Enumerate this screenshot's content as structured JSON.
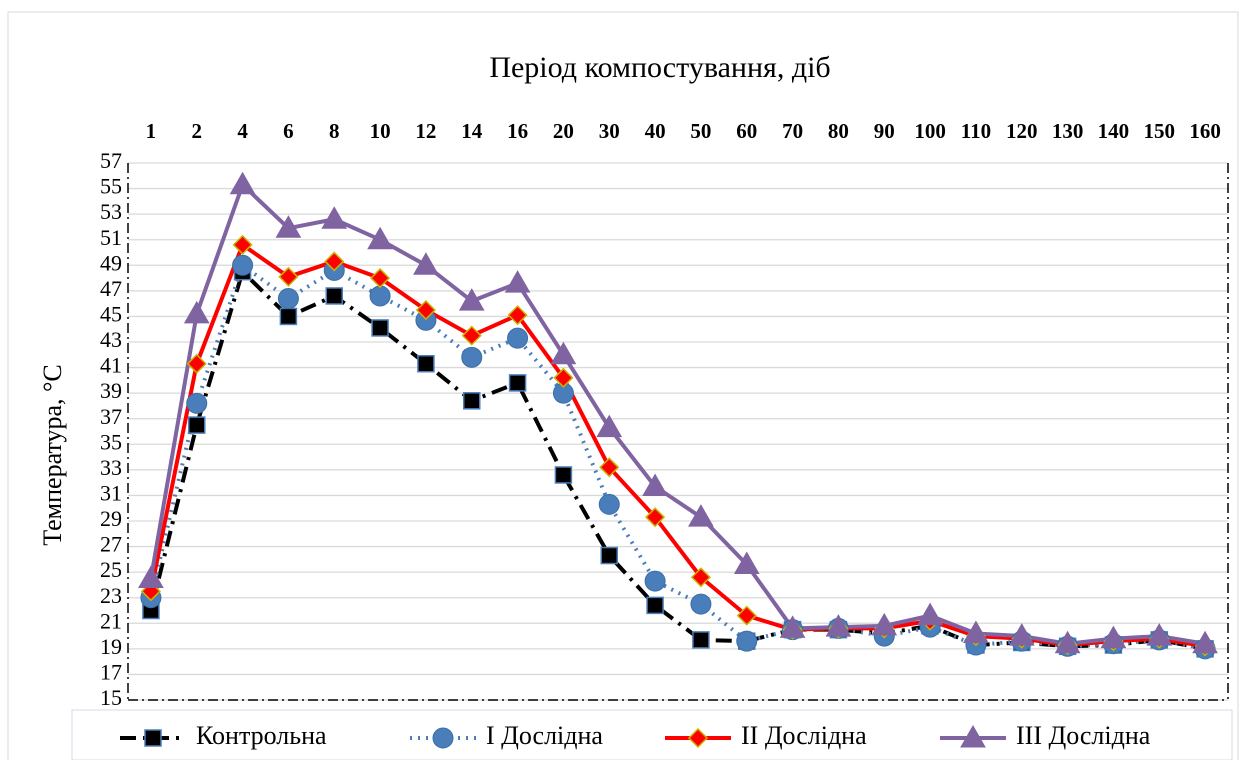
{
  "chart_data": {
    "type": "line",
    "title": "Період компостування, діб",
    "y_label": "Температура, °C",
    "categories": [
      "1",
      "2",
      "4",
      "6",
      "8",
      "10",
      "12",
      "14",
      "16",
      "20",
      "30",
      "40",
      "50",
      "60",
      "70",
      "80",
      "90",
      "100",
      "110",
      "120",
      "130",
      "140",
      "150",
      "160"
    ],
    "ylim": [
      15,
      57
    ],
    "yticks": [
      15,
      17,
      19,
      21,
      23,
      25,
      27,
      29,
      31,
      33,
      35,
      37,
      39,
      41,
      43,
      45,
      47,
      49,
      51,
      53,
      55,
      57
    ],
    "grid": true,
    "legend": "bottom",
    "series": [
      {
        "name": "Контрольна",
        "color": "#000000",
        "marker": "square",
        "dash": "dashdot",
        "values": [
          22.0,
          36.5,
          48.5,
          45.0,
          46.6,
          44.1,
          41.3,
          38.4,
          39.8,
          32.6,
          26.3,
          22.4,
          19.7,
          19.6,
          20.5,
          20.5,
          20.2,
          20.8,
          19.3,
          19.5,
          19.2,
          19.3,
          19.7,
          19.0
        ]
      },
      {
        "name": "І Дослідна",
        "color": "#4a7ebb",
        "marker": "circle",
        "dash": "dot",
        "values": [
          23.0,
          38.2,
          49.0,
          46.4,
          48.6,
          46.6,
          44.7,
          41.8,
          43.3,
          39.0,
          30.3,
          24.3,
          22.5,
          19.6,
          20.5,
          20.6,
          20.0,
          20.7,
          19.3,
          19.6,
          19.2,
          19.4,
          19.7,
          19.0
        ]
      },
      {
        "name": "ІІ Дослідна",
        "color": "#ff0000",
        "marker": "diamond",
        "dash": "solid",
        "values": [
          23.5,
          41.3,
          50.6,
          48.1,
          49.3,
          48.0,
          45.5,
          43.5,
          45.1,
          40.2,
          33.2,
          29.3,
          24.6,
          21.6,
          20.5,
          20.6,
          20.6,
          21.2,
          20.0,
          19.8,
          19.3,
          19.6,
          19.8,
          19.2
        ]
      },
      {
        "name": "ІІІ Дослідна",
        "color": "#8064a2",
        "marker": "triangle",
        "dash": "solid",
        "values": [
          24.5,
          45.2,
          55.3,
          51.9,
          52.6,
          51.0,
          49.0,
          46.2,
          47.6,
          42.0,
          36.3,
          31.7,
          29.3,
          25.6,
          20.6,
          20.7,
          20.8,
          21.6,
          20.2,
          20.0,
          19.4,
          19.8,
          20.0,
          19.4
        ]
      }
    ]
  }
}
